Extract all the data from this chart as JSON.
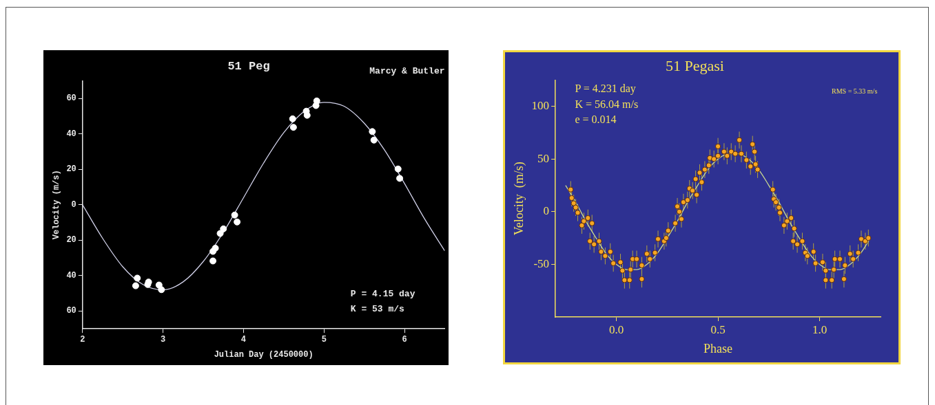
{
  "chart_data": [
    {
      "type": "scatter",
      "title": "51 Peg",
      "xlabel": "Julian Day (2450000)",
      "ylabel": "Velocity (m/s)",
      "xlim": [
        2,
        6.5
      ],
      "xticks": [
        2,
        3,
        4,
        5,
        6
      ],
      "ylim": [
        -70,
        70
      ],
      "yticks": [
        60,
        40,
        20,
        0,
        {
          "value": -20,
          "label": "20"
        },
        {
          "value": -40,
          "label": "40"
        },
        {
          "value": -60,
          "label": "60"
        }
      ],
      "grid": false,
      "legend": false,
      "annotations": [
        "Marcy & Butler",
        "P = 4.15 day",
        "K = 53 m/s"
      ],
      "series": [
        {
          "type": "scatter",
          "marker": "circle",
          "color": "#ffffff",
          "x": [
            2.66,
            2.68,
            2.81,
            2.82,
            2.95,
            2.98,
            3.62,
            3.65,
            3.62,
            3.71,
            3.75,
            3.89,
            3.92,
            4.61,
            4.62,
            4.78,
            4.79,
            4.9,
            4.91,
            5.6,
            5.62,
            5.92,
            5.94
          ],
          "values": [
            -45.7,
            -41.4,
            -45,
            -43.6,
            -45.3,
            -47.9,
            -26.3,
            -24.5,
            -31.7,
            -16.2,
            -13.6,
            -5.8,
            -9.7,
            48.5,
            43.7,
            52.8,
            50.5,
            56,
            58.6,
            41.3,
            36.5,
            20.2,
            14.9
          ]
        },
        {
          "type": "line",
          "marker": "none",
          "line_style": "solid",
          "color": "#d0d0e8",
          "x": [
            2,
            2.25,
            2.5,
            2.75,
            3,
            3.25,
            3.5,
            3.75,
            4,
            4.25,
            4.5,
            4.75,
            5,
            5.25,
            5.5,
            5.75,
            6,
            6.25,
            6.5
          ],
          "values": [
            0,
            -19,
            -35,
            -45,
            -48,
            -43.5,
            -32,
            -15.5,
            4,
            23.6,
            40.7,
            52.6,
            57.8,
            55.6,
            46,
            31,
            12,
            -8,
            -26
          ]
        }
      ]
    },
    {
      "type": "scatter",
      "title": "51 Pegasi",
      "xlabel": "Phase",
      "ylabel": "Velocity  (m/s)",
      "xlim": [
        -0.3,
        1.3
      ],
      "xticks": [
        {
          "value": 0,
          "label": "0.0"
        },
        0.5,
        {
          "value": 1,
          "label": "1.0"
        }
      ],
      "ylim": [
        -100,
        125
      ],
      "yticks": [
        -50,
        0,
        50,
        100
      ],
      "grid": false,
      "legend": false,
      "annotations": [
        "P = 4.231 day",
        "K = 56.04 m/s",
        "e = 0.014",
        "RMS = 5.33 m/s"
      ],
      "series": [
        {
          "type": "scatter",
          "marker": "circle",
          "color": "#f5a623",
          "x": [
            -0.225,
            -0.22,
            -0.21,
            -0.2,
            -0.19,
            -0.17,
            -0.16,
            -0.14,
            -0.13,
            -0.12,
            -0.11,
            -0.085,
            -0.075,
            -0.055,
            -0.03,
            -0.015,
            0.02,
            0.03,
            0.04,
            0.065,
            0.07,
            0.08,
            0.1,
            0.125,
            0.125,
            0.15,
            0.165,
            0.19,
            0.205,
            0.235,
            0.245,
            0.255,
            0.29,
            0.3,
            0.31,
            0.32,
            0.33,
            0.35,
            0.36,
            0.375,
            0.395,
            0.39,
            0.41,
            0.42,
            0.435,
            0.455,
            0.46,
            0.48,
            0.5,
            0.5,
            0.53,
            0.545,
            0.565,
            0.585,
            0.605,
            0.615,
            0.64,
            0.66,
            0.67,
            0.68,
            0.685,
            0.695,
            0.77,
            0.775,
            0.785,
            0.8,
            0.805,
            0.825,
            0.84,
            0.86,
            0.87,
            0.875,
            0.89,
            0.915,
            0.93,
            0.94,
            0.97,
            0.98,
            1.015,
            1.03,
            1.03,
            1.06,
            1.07,
            1.075,
            1.1,
            1.12,
            1.125,
            1.15,
            1.165,
            1.19,
            1.205,
            1.225,
            1.24
          ],
          "values": [
            21,
            13,
            8,
            4,
            -1,
            -13,
            -9,
            -6,
            -28,
            -11,
            -31,
            -28,
            -38,
            -42,
            -38,
            -49,
            -48,
            -56,
            -65,
            -65,
            -55,
            -45,
            -45,
            -64,
            -51,
            -40,
            -45,
            -39,
            -26,
            -28,
            -25,
            -18,
            -11,
            5,
            0,
            -7,
            9,
            11,
            22,
            20,
            16,
            31,
            37,
            28,
            40,
            44,
            51,
            50,
            62,
            53,
            57,
            53,
            57,
            55,
            68,
            55,
            49,
            43,
            64,
            57,
            45,
            40,
            21,
            12,
            9,
            4,
            -1,
            -13,
            -9,
            -6,
            -28,
            -16,
            -31,
            -28,
            -39,
            -42,
            -38,
            -49,
            -48,
            -56,
            -65,
            -65,
            -55,
            -45,
            -45,
            -64,
            -51,
            -40,
            -45,
            -39,
            -26,
            -28,
            -25
          ],
          "errors": [
            8,
            8,
            8,
            8,
            8,
            8,
            8,
            8,
            8,
            8,
            8,
            8,
            8,
            8,
            8,
            8,
            8,
            8,
            8,
            8,
            8,
            8,
            8,
            8,
            8,
            8,
            8,
            8,
            8,
            8,
            8,
            8,
            8,
            8,
            8,
            8,
            8,
            8,
            8,
            8,
            8,
            8,
            8,
            8,
            8,
            8,
            8,
            8,
            8,
            8,
            8,
            8,
            8,
            8,
            8,
            8,
            8,
            8,
            8,
            8,
            8,
            8,
            8,
            8,
            8,
            8,
            8,
            8,
            8,
            8,
            8,
            8,
            8,
            8,
            8,
            8,
            8,
            8,
            8,
            8,
            8,
            8,
            8,
            8,
            8,
            8,
            8,
            8,
            8,
            8,
            8,
            8,
            8
          ]
        },
        {
          "type": "line",
          "marker": "none",
          "line_style": "solid",
          "color": "#c8d890",
          "x": [
            -0.25,
            -0.2,
            -0.15,
            -0.1,
            -0.05,
            0,
            0.05,
            0.1,
            0.15,
            0.2,
            0.25,
            0.3,
            0.35,
            0.4,
            0.45,
            0.5,
            0.55,
            0.6,
            0.65,
            0.7,
            0.75,
            0.8,
            0.85,
            0.9,
            0.95,
            1,
            1.05,
            1.1,
            1.15,
            1.2,
            1.25
          ],
          "values": [
            25,
            9,
            -9,
            -25,
            -40,
            -50,
            -55,
            -55,
            -50,
            -40,
            -25,
            -9,
            9,
            25,
            40,
            50,
            55,
            55,
            50,
            40,
            25,
            9,
            -9,
            -25,
            -40,
            -50,
            -55,
            -55,
            -50,
            -40,
            -25
          ]
        }
      ]
    }
  ]
}
